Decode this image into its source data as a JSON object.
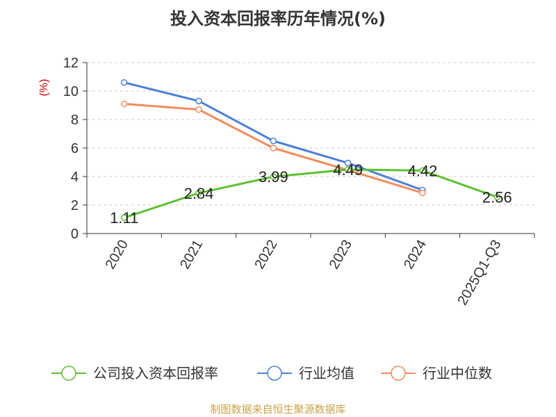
{
  "chart_data": {
    "type": "line",
    "title": "投入资本回报率历年情况(%)",
    "ylabel": "(%)",
    "xlabel": "",
    "categories": [
      "2020",
      "2021",
      "2022",
      "2023",
      "2024",
      "2025Q1-Q3"
    ],
    "yticks": [
      "0",
      "2",
      "4",
      "6",
      "8",
      "10",
      "12"
    ],
    "ylim": [
      0,
      12
    ],
    "grid": "horizontal-dashed",
    "legend_position": "bottom",
    "series": [
      {
        "name": "公司投入资本回报率",
        "color": "#5ac12d",
        "values": [
          1.11,
          2.84,
          3.99,
          4.49,
          4.42,
          2.56
        ],
        "labels": [
          "1.11",
          "2.84",
          "3.99",
          "4.49",
          "4.42",
          "2.56"
        ]
      },
      {
        "name": "行业均值",
        "color": "#4a7fdb",
        "values": [
          10.6,
          9.3,
          6.5,
          4.95,
          3.05,
          null
        ],
        "labels": []
      },
      {
        "name": "行业中位数",
        "color": "#f58b5a",
        "values": [
          9.1,
          8.7,
          6.0,
          4.45,
          2.85,
          null
        ],
        "labels": []
      }
    ]
  },
  "source_text": "制图数据来自恒生聚源数据库",
  "colors": {
    "ylabel": "#cc0000",
    "source": "#c9a34a",
    "axis": "#333333",
    "grid": "#cccccc"
  }
}
